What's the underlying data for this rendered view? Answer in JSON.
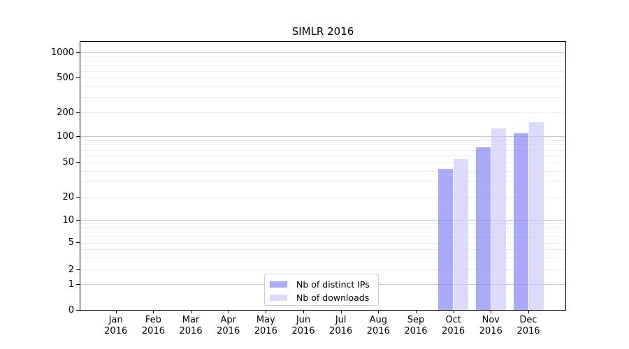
{
  "chart_data": {
    "type": "bar",
    "title": "SIMLR 2016",
    "categories": [
      "Jan",
      "Feb",
      "Mar",
      "Apr",
      "May",
      "Jun",
      "Jul",
      "Aug",
      "Sep",
      "Oct",
      "Nov",
      "Dec"
    ],
    "category_year": "2016",
    "series": [
      {
        "name": "Nb of distinct IPs",
        "color": "#aaaaf8",
        "fill": "rgba(134,134,248,0.7)",
        "values": [
          0,
          0,
          0,
          0,
          0,
          0,
          0,
          0,
          0,
          42,
          75,
          110
        ]
      },
      {
        "name": "Nb of downloads",
        "color": "#dcdcfa",
        "fill": "rgba(205,205,248,0.7)",
        "values": [
          0,
          0,
          0,
          0,
          0,
          0,
          0,
          0,
          0,
          55,
          125,
          152
        ]
      }
    ],
    "yaxis": {
      "scale": "symlog",
      "ticks": [
        0,
        1,
        2,
        5,
        10,
        20,
        50,
        100,
        200,
        500,
        1000
      ],
      "major_gridlines": [
        1,
        10,
        100,
        1000
      ],
      "minor_gridlines": [
        2,
        3,
        4,
        5,
        6,
        7,
        8,
        9,
        20,
        30,
        40,
        50,
        60,
        70,
        80,
        90,
        200,
        300,
        400,
        500,
        600,
        700,
        800,
        900
      ]
    },
    "xlabel": "",
    "ylabel": "",
    "legend": {
      "position": "lower center"
    },
    "grid": true,
    "colors": {
      "grid_major": "#c6c6c6",
      "grid_minor": "#ececec",
      "axis": "#000000",
      "background": "#ffffff"
    }
  }
}
